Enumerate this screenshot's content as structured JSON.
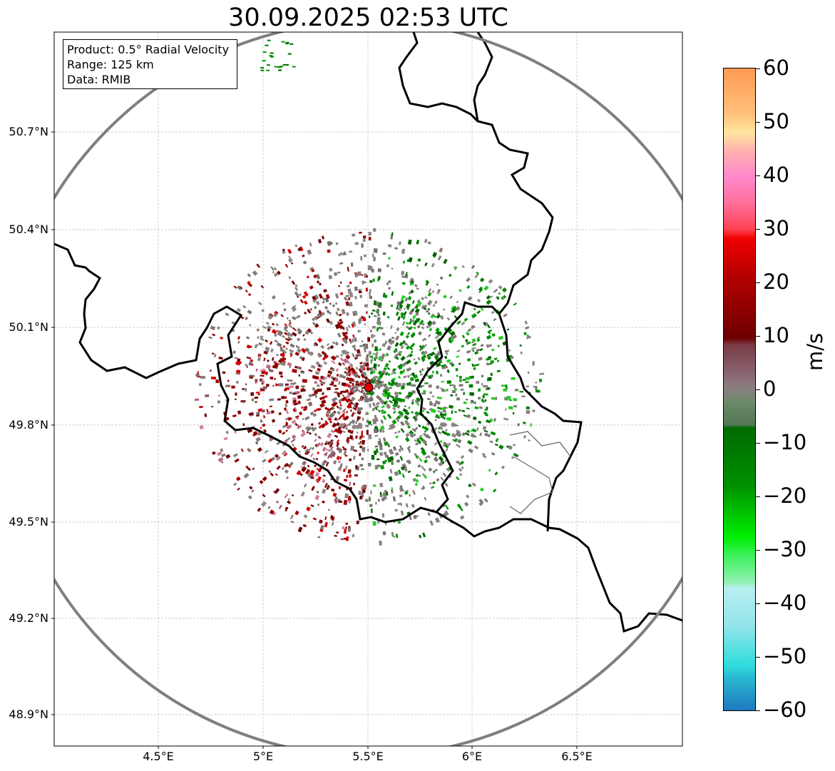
{
  "title": "30.09.2025 02:53 UTC",
  "info": {
    "product": "Product: 0.5° Radial Velocity",
    "range": "Range: 125 km",
    "source": "Data: RMIB"
  },
  "map": {
    "lon_ticks": [
      "4.5°E",
      "5°E",
      "5.5°E",
      "6°E",
      "6.5°E"
    ],
    "lat_ticks": [
      "50.7°N",
      "50.4°N",
      "50.1°N",
      "49.8°N",
      "49.5°N",
      "49.2°N",
      "48.9°N"
    ],
    "radar_site": {
      "lon": 5.505,
      "lat": 49.914
    },
    "range_ring_km": 125,
    "extent": {
      "lon": [
        4.0,
        7.0
      ],
      "lat": [
        48.8,
        51.0
      ]
    }
  },
  "colorbar": {
    "label": "m/s",
    "range": [
      -60,
      60
    ],
    "ticks": [
      "60",
      "50",
      "40",
      "30",
      "20",
      "10",
      "0",
      "−10",
      "−20",
      "−30",
      "−40",
      "−50",
      "−60"
    ],
    "colors": {
      "strong_away": "#ff9f5a",
      "away": "#d60000",
      "near_zero": "#8a7a7a",
      "toward": "#008a00",
      "strong_toward": "#1f78b4"
    }
  }
}
